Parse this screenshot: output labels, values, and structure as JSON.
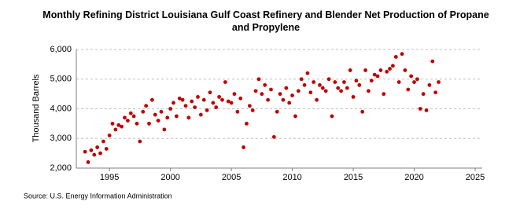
{
  "chart_data": {
    "type": "scatter",
    "title": "Monthly Refining District Louisiana Gulf Coast Refinery and Blender Net Production of Propane and Propylene",
    "y_label": "Thousand Barrels",
    "source": "Source: U.S. Energy Information Administration",
    "color": "#c00000",
    "grid": true,
    "xlim": [
      1992.28,
      2025.58
    ],
    "xticks": [
      1995,
      2000,
      2005,
      2010,
      2015,
      2020,
      2025
    ],
    "ylim": [
      2000,
      6000
    ],
    "yticks": [
      {
        "value": 2000,
        "label": "2,000"
      },
      {
        "value": 3000,
        "label": "3,000"
      },
      {
        "value": 4000,
        "label": "4,000"
      },
      {
        "value": 5000,
        "label": "5,000"
      },
      {
        "value": 6000,
        "label": "6,000"
      }
    ],
    "x": [
      1993,
      1993.25,
      1993.5,
      1993.75,
      1994,
      1994.25,
      1994.5,
      1994.75,
      1995,
      1995.25,
      1995.5,
      1995.75,
      1996,
      1996.25,
      1996.5,
      1996.75,
      1997,
      1997.25,
      1997.5,
      1997.75,
      1998,
      1998.25,
      1998.5,
      1998.75,
      1999,
      1999.25,
      1999.5,
      1999.75,
      2000,
      2000.25,
      2000.5,
      2000.75,
      2001,
      2001.25,
      2001.5,
      2001.75,
      2002,
      2002.25,
      2002.5,
      2002.75,
      2003,
      2003.25,
      2003.5,
      2003.75,
      2004,
      2004.25,
      2004.5,
      2004.75,
      2005,
      2005.25,
      2005.5,
      2005.75,
      2006,
      2006.25,
      2006.5,
      2006.75,
      2007,
      2007.25,
      2007.5,
      2007.75,
      2008,
      2008.25,
      2008.5,
      2008.75,
      2009,
      2009.25,
      2009.5,
      2009.75,
      2010,
      2010.25,
      2010.5,
      2010.75,
      2011,
      2011.25,
      2011.5,
      2011.75,
      2012,
      2012.25,
      2012.5,
      2012.75,
      2013,
      2013.25,
      2013.5,
      2013.75,
      2014,
      2014.25,
      2014.5,
      2014.75,
      2015,
      2015.25,
      2015.5,
      2015.75,
      2016,
      2016.25,
      2016.5,
      2016.75,
      2017,
      2017.25,
      2017.5,
      2017.75,
      2018,
      2018.25,
      2018.5,
      2018.75,
      2019,
      2019.25,
      2019.5,
      2019.75,
      2020,
      2020.25,
      2020.5,
      2020.75,
      2021,
      2021.25,
      2021.5,
      2021.75,
      2022
    ],
    "values": [
      2550,
      2200,
      2600,
      2450,
      2700,
      2500,
      2900,
      2650,
      3100,
      3500,
      3300,
      3450,
      3400,
      3700,
      3600,
      3850,
      3750,
      3500,
      2900,
      3900,
      4100,
      3500,
      4300,
      3800,
      3600,
      3900,
      3300,
      3700,
      4000,
      4200,
      3750,
      4350,
      4300,
      4100,
      3700,
      4250,
      4050,
      4400,
      3800,
      4300,
      3950,
      4550,
      4200,
      4050,
      4400,
      4300,
      4900,
      4250,
      4200,
      4500,
      3900,
      4350,
      2700,
      3500,
      4100,
      3950,
      4600,
      5000,
      4500,
      4800,
      4300,
      4650,
      3050,
      3900,
      4500,
      4300,
      4700,
      4200,
      4450,
      3750,
      4600,
      5000,
      4800,
      5200,
      4550,
      4900,
      4300,
      4800,
      4700,
      4600,
      5000,
      3750,
      4900,
      4700,
      4600,
      4900,
      4700,
      5300,
      4400,
      4950,
      4800,
      3900,
      5300,
      4600,
      4950,
      5150,
      5100,
      5300,
      4500,
      5250,
      5350,
      5450,
      5750,
      4900,
      5850,
      5300,
      4650,
      5100,
      4900,
      5000,
      4000,
      4500,
      3950,
      4800,
      5600,
      4550,
      4900
    ]
  }
}
